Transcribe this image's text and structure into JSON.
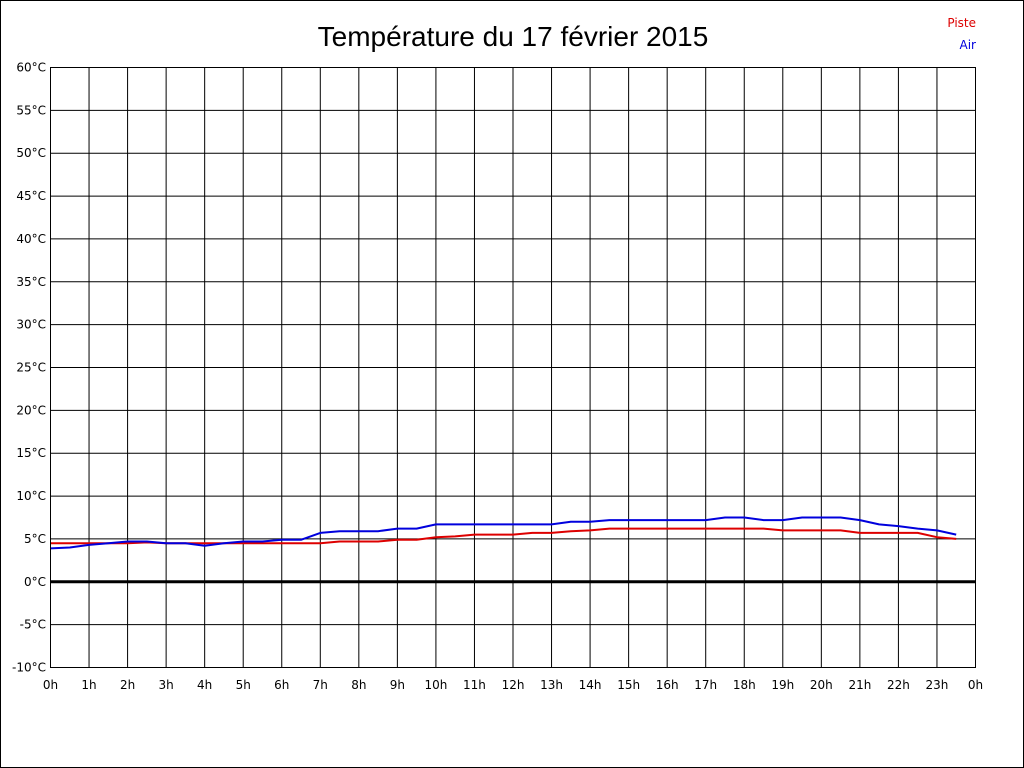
{
  "chart_data": {
    "type": "line",
    "title": "Température du 17 février 2015",
    "xlabel": "",
    "ylabel": "",
    "x_tick_labels": [
      "0h",
      "1h",
      "2h",
      "3h",
      "4h",
      "5h",
      "6h",
      "7h",
      "8h",
      "9h",
      "10h",
      "11h",
      "12h",
      "13h",
      "14h",
      "15h",
      "16h",
      "17h",
      "18h",
      "19h",
      "20h",
      "21h",
      "22h",
      "23h",
      "0h"
    ],
    "y_tick_labels": [
      "60°C",
      "55°C",
      "50°C",
      "45°C",
      "40°C",
      "35°C",
      "30°C",
      "25°C",
      "20°C",
      "15°C",
      "10°C",
      "5°C",
      "0°C",
      "-5°C",
      "-10°C"
    ],
    "xlim": [
      0,
      24
    ],
    "ylim": [
      -10,
      60
    ],
    "grid": true,
    "zero_line": true,
    "legend_position": "top-right",
    "series": [
      {
        "name": "Piste",
        "color": "#dd0000",
        "x": [
          0,
          0.5,
          1,
          1.5,
          2,
          2.5,
          3,
          3.5,
          4,
          4.5,
          5,
          5.5,
          6,
          6.5,
          7,
          7.5,
          8,
          8.5,
          9,
          9.5,
          10,
          10.5,
          11,
          11.5,
          12,
          12.5,
          13,
          13.5,
          14,
          14.5,
          15,
          15.5,
          16,
          16.5,
          17,
          17.5,
          18,
          18.5,
          19,
          19.5,
          20,
          20.5,
          21,
          21.5,
          22,
          22.5,
          23,
          23.5
        ],
        "values": [
          4.5,
          4.5,
          4.5,
          4.5,
          4.5,
          4.6,
          4.5,
          4.5,
          4.5,
          4.5,
          4.5,
          4.5,
          4.5,
          4.5,
          4.5,
          4.7,
          4.7,
          4.7,
          4.9,
          4.9,
          5.2,
          5.3,
          5.5,
          5.5,
          5.5,
          5.7,
          5.7,
          5.9,
          6.0,
          6.2,
          6.2,
          6.2,
          6.2,
          6.2,
          6.2,
          6.2,
          6.2,
          6.2,
          6.0,
          6.0,
          6.0,
          6.0,
          5.7,
          5.7,
          5.7,
          5.7,
          5.2,
          5.0
        ]
      },
      {
        "name": "Air",
        "color": "#0000dd",
        "x": [
          0,
          0.5,
          1,
          1.5,
          2,
          2.5,
          3,
          3.5,
          4,
          4.5,
          5,
          5.5,
          6,
          6.5,
          7,
          7.5,
          8,
          8.5,
          9,
          9.5,
          10,
          10.5,
          11,
          11.5,
          12,
          12.5,
          13,
          13.5,
          14,
          14.5,
          15,
          15.5,
          16,
          16.5,
          17,
          17.5,
          18,
          18.5,
          19,
          19.5,
          20,
          20.5,
          21,
          21.5,
          22,
          22.5,
          23,
          23.5
        ],
        "values": [
          3.9,
          4.0,
          4.3,
          4.5,
          4.7,
          4.7,
          4.5,
          4.5,
          4.2,
          4.5,
          4.7,
          4.7,
          4.9,
          4.9,
          5.7,
          5.9,
          5.9,
          5.9,
          6.2,
          6.2,
          6.7,
          6.7,
          6.7,
          6.7,
          6.7,
          6.7,
          6.7,
          7.0,
          7.0,
          7.2,
          7.2,
          7.2,
          7.2,
          7.2,
          7.2,
          7.5,
          7.5,
          7.2,
          7.2,
          7.5,
          7.5,
          7.5,
          7.2,
          6.7,
          6.5,
          6.2,
          6.0,
          5.5
        ]
      }
    ]
  }
}
